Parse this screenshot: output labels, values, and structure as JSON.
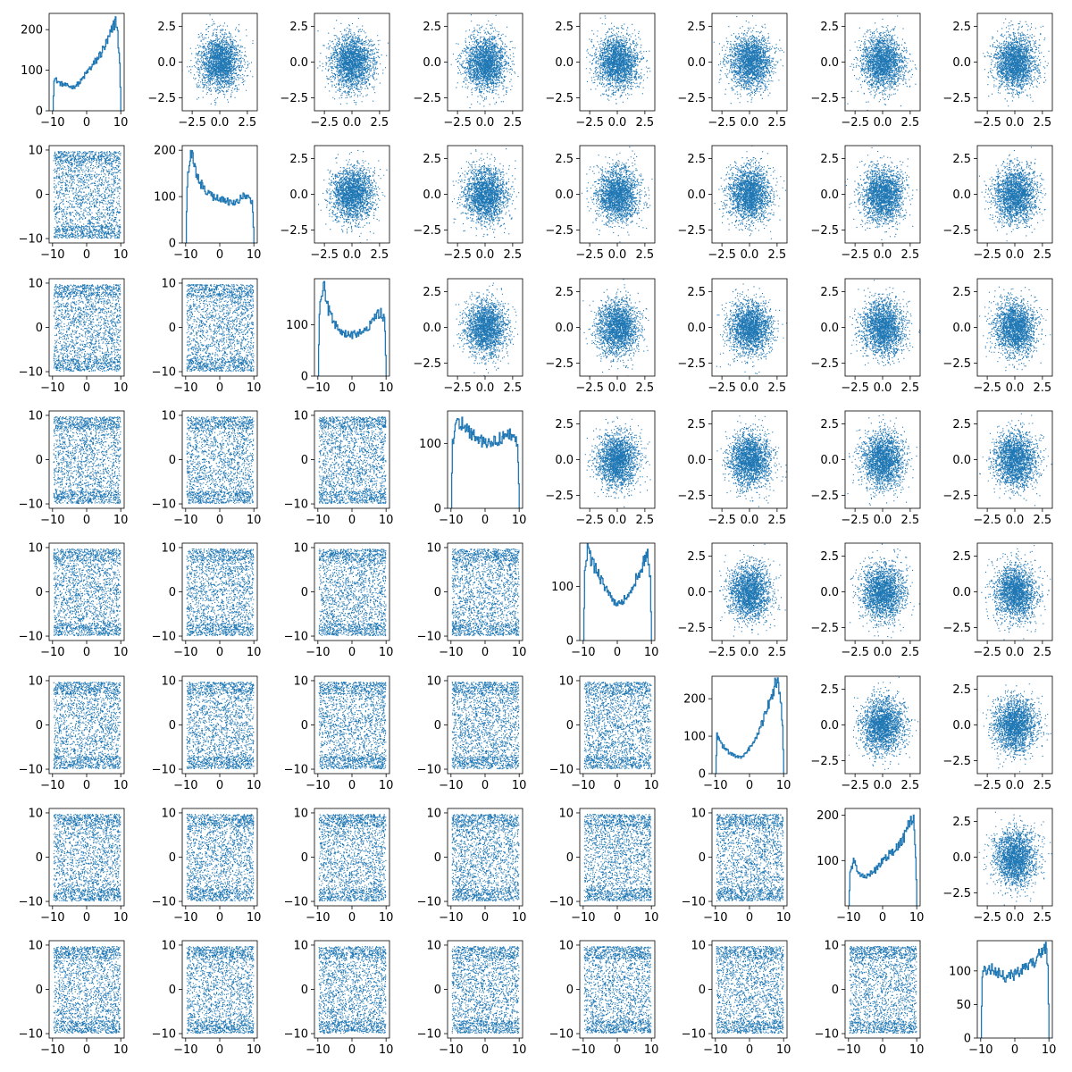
{
  "chart_data": {
    "type": "scatter",
    "layout": "pair-plot matrix, 8 rows x 8 columns; diagonal cells are step histograms, upper triangle scatter of normal-like data, lower triangle scatter of uniform-like data",
    "grid": false,
    "series_color": "#1f77b4",
    "axes": {
      "uniform": {
        "range": [
          -11,
          11
        ],
        "ticks": [
          -10,
          0,
          10
        ],
        "tick_labels": [
          "−10",
          "0",
          "10"
        ]
      },
      "normal": {
        "range": [
          -3.4,
          3.4
        ],
        "ticks": [
          -2.5,
          0,
          2.5
        ],
        "tick_labels": [
          "−2.5",
          "0.0",
          "2.5"
        ]
      },
      "normal_x": {
        "range": [
          -3.4,
          3.4
        ],
        "ticks": [
          -2.5,
          0,
          2.5
        ],
        "tick_labels": [
          "−2.5",
          "0.0",
          "2.5"
        ]
      }
    },
    "histograms": [
      {
        "row": 0,
        "ylim": [
          0,
          240
        ],
        "yticks": [
          0,
          100,
          200
        ],
        "ytick_labels": [
          "0",
          "100",
          "200"
        ],
        "profile": [
          [
            -10,
            0
          ],
          [
            -9.6,
            80
          ],
          [
            -8,
            68
          ],
          [
            -6,
            62
          ],
          [
            -4,
            58
          ],
          [
            -2,
            70
          ],
          [
            0,
            95
          ],
          [
            2,
            115
          ],
          [
            4,
            140
          ],
          [
            6,
            170
          ],
          [
            7.5,
            200
          ],
          [
            8.5,
            230
          ],
          [
            9.5,
            140
          ],
          [
            10,
            0
          ]
        ]
      },
      {
        "row": 1,
        "ylim": [
          0,
          210
        ],
        "yticks": [
          0,
          100,
          200
        ],
        "ytick_labels": [
          "0",
          "100",
          "200"
        ],
        "profile": [
          [
            -10,
            0
          ],
          [
            -9.6,
            130
          ],
          [
            -8.6,
            200
          ],
          [
            -7,
            150
          ],
          [
            -5,
            120
          ],
          [
            -2,
            100
          ],
          [
            0,
            95
          ],
          [
            2,
            90
          ],
          [
            4,
            85
          ],
          [
            6,
            95
          ],
          [
            8,
            105
          ],
          [
            9.5,
            90
          ],
          [
            10,
            0
          ]
        ]
      },
      {
        "row": 2,
        "ylim": [
          0,
          190
        ],
        "yticks": [
          0,
          100
        ],
        "ytick_labels": [
          "0",
          "100"
        ],
        "profile": [
          [
            -10,
            0
          ],
          [
            -9.6,
            130
          ],
          [
            -8.5,
            180
          ],
          [
            -7,
            130
          ],
          [
            -5,
            100
          ],
          [
            -3,
            85
          ],
          [
            0,
            80
          ],
          [
            2,
            85
          ],
          [
            4,
            90
          ],
          [
            6,
            105
          ],
          [
            8,
            125
          ],
          [
            9.5,
            110
          ],
          [
            10,
            0
          ]
        ]
      },
      {
        "row": 3,
        "ylim": [
          0,
          150
        ],
        "yticks": [
          0,
          100
        ],
        "ytick_labels": [
          "0",
          "100"
        ],
        "profile": [
          [
            -10,
            0
          ],
          [
            -9.6,
            100
          ],
          [
            -8.5,
            140
          ],
          [
            -6,
            125
          ],
          [
            -3,
            110
          ],
          [
            0,
            100
          ],
          [
            3,
            105
          ],
          [
            6,
            110
          ],
          [
            8,
            115
          ],
          [
            9.5,
            95
          ],
          [
            10,
            0
          ]
        ]
      },
      {
        "row": 4,
        "ylim": [
          0,
          180
        ],
        "yticks": [
          0,
          100
        ],
        "ytick_labels": [
          "0",
          "100"
        ],
        "profile": [
          [
            -10,
            0
          ],
          [
            -9.6,
            120
          ],
          [
            -8.8,
            165
          ],
          [
            -7,
            140
          ],
          [
            -4,
            100
          ],
          [
            -1,
            70
          ],
          [
            1,
            68
          ],
          [
            4,
            95
          ],
          [
            7,
            135
          ],
          [
            8.8,
            160
          ],
          [
            9.6,
            110
          ],
          [
            10,
            0
          ]
        ]
      },
      {
        "row": 5,
        "ylim": [
          0,
          260
        ],
        "yticks": [
          0,
          100,
          200
        ],
        "ytick_labels": [
          "0",
          "100",
          "200"
        ],
        "profile": [
          [
            -10,
            0
          ],
          [
            -9.6,
            100
          ],
          [
            -8,
            75
          ],
          [
            -6,
            55
          ],
          [
            -4,
            45
          ],
          [
            -2,
            45
          ],
          [
            0,
            70
          ],
          [
            2,
            100
          ],
          [
            4,
            145
          ],
          [
            6,
            200
          ],
          [
            7.5,
            240
          ],
          [
            8.8,
            230
          ],
          [
            9.6,
            130
          ],
          [
            10,
            0
          ]
        ]
      },
      {
        "row": 6,
        "ylim": [
          0,
          215
        ],
        "yticks": [
          100,
          200
        ],
        "ytick_labels": [
          "100",
          "200"
        ],
        "profile": [
          [
            -10,
            0
          ],
          [
            -9.6,
            70
          ],
          [
            -8.5,
            100
          ],
          [
            -7,
            70
          ],
          [
            -5,
            65
          ],
          [
            -2,
            80
          ],
          [
            0,
            100
          ],
          [
            2,
            115
          ],
          [
            4,
            130
          ],
          [
            6,
            150
          ],
          [
            8,
            185
          ],
          [
            9,
            200
          ],
          [
            9.6,
            110
          ],
          [
            10,
            0
          ]
        ]
      },
      {
        "row": 7,
        "ylim": [
          0,
          145
        ],
        "yticks": [
          0,
          50,
          100
        ],
        "ytick_labels": [
          "0",
          "50",
          "100"
        ],
        "profile": [
          [
            -10,
            0
          ],
          [
            -9.6,
            95
          ],
          [
            -8,
            105
          ],
          [
            -6,
            100
          ],
          [
            -3,
            90
          ],
          [
            0,
            95
          ],
          [
            3,
            105
          ],
          [
            6,
            115
          ],
          [
            8,
            130
          ],
          [
            9.2,
            135
          ],
          [
            9.6,
            100
          ],
          [
            10,
            0
          ]
        ]
      }
    ]
  }
}
